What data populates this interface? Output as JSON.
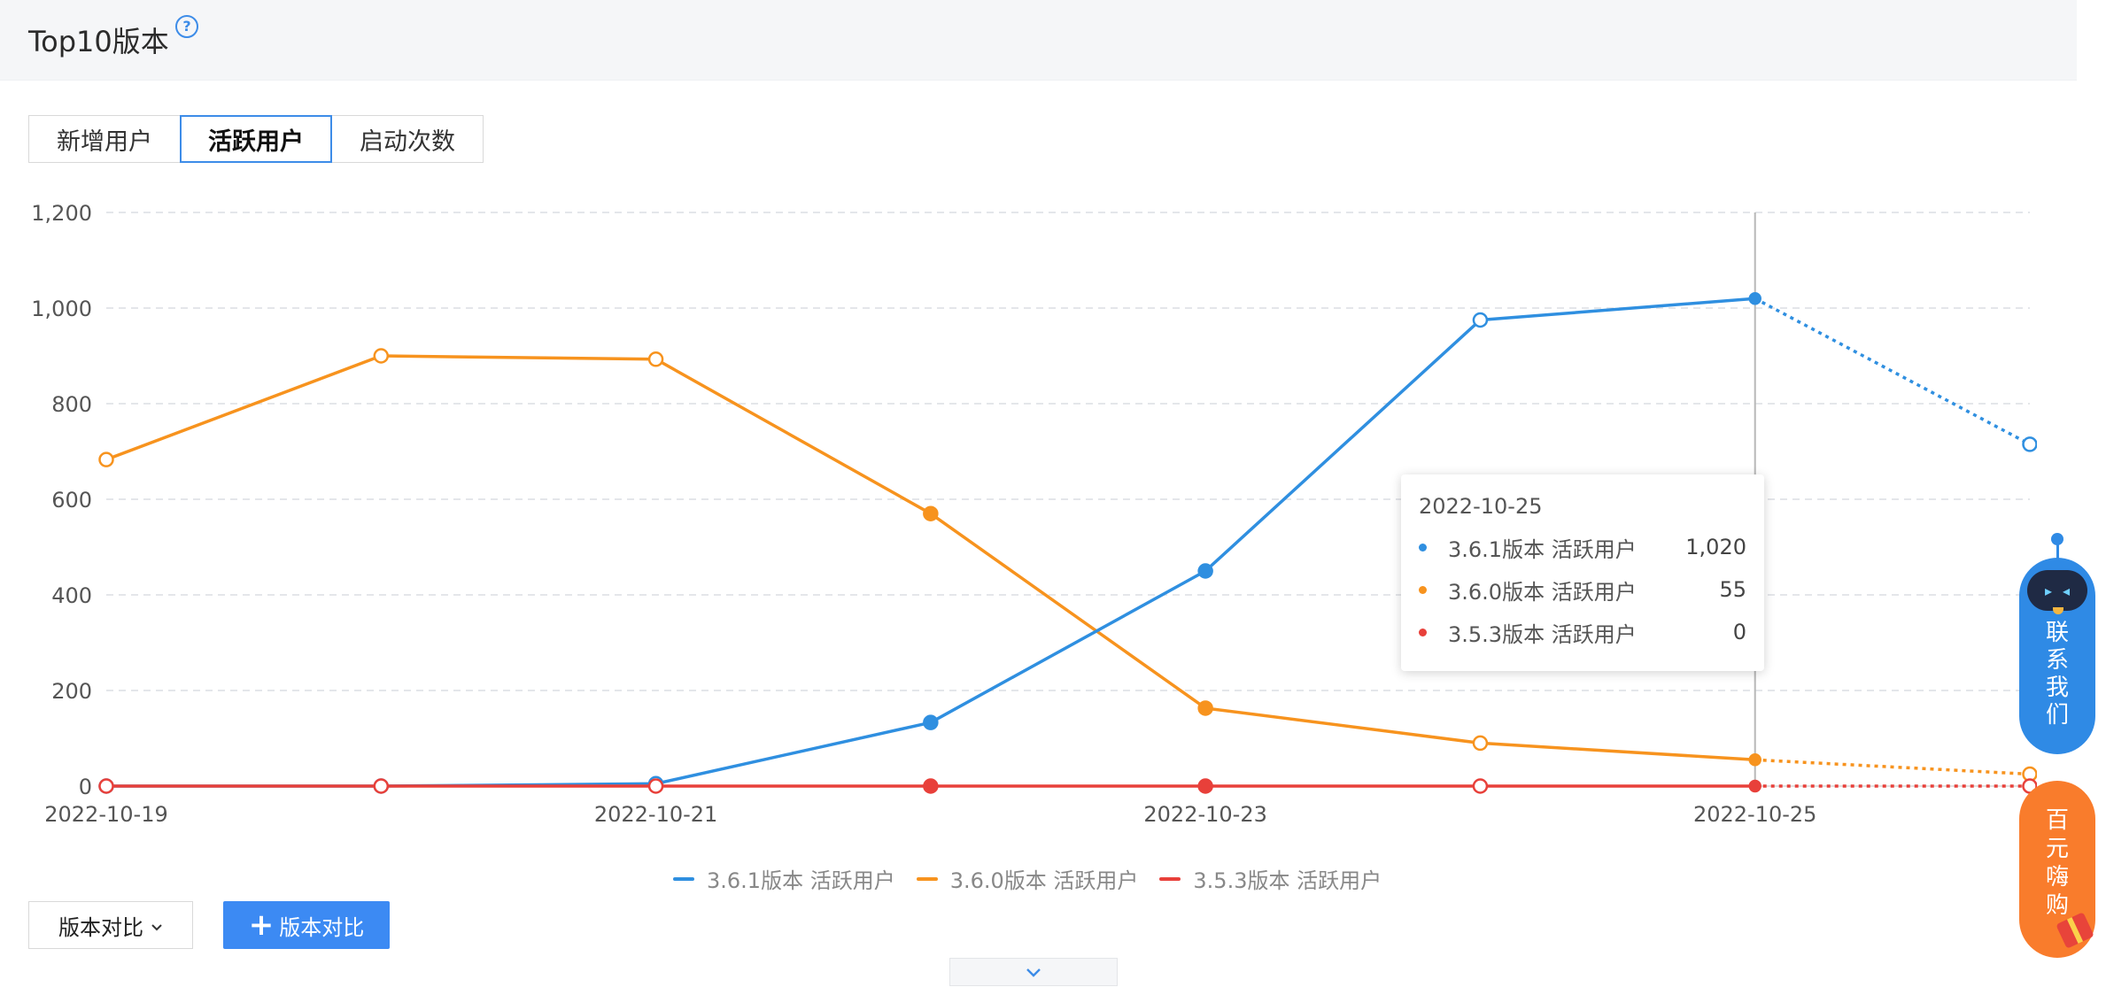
{
  "header": {
    "title": "Top10版本",
    "help_icon": "question-circle-icon"
  },
  "tabs": [
    {
      "label": "新增用户",
      "active": false
    },
    {
      "label": "活跃用户",
      "active": true
    },
    {
      "label": "启动次数",
      "active": false
    }
  ],
  "chart_data": {
    "type": "line",
    "x": [
      "2022-10-19",
      "2022-10-20",
      "2022-10-21",
      "2022-10-22",
      "2022-10-23",
      "2022-10-24",
      "2022-10-25",
      "2022-10-26"
    ],
    "x_tick_labels": [
      "2022-10-19",
      "2022-10-21",
      "2022-10-23",
      "2022-10-25"
    ],
    "y_tick_labels": [
      "0",
      "200",
      "400",
      "600",
      "800",
      "1,000",
      "1,200"
    ],
    "ylim": [
      0,
      1200
    ],
    "grid": true,
    "legend_position": "bottom",
    "last_point_dashed": true,
    "series": [
      {
        "name": "3.6.1版本 活跃用户",
        "color": "#2f8fe0",
        "values": [
          0,
          0,
          5,
          133,
          450,
          975,
          1020,
          715
        ]
      },
      {
        "name": "3.6.0版本 活跃用户",
        "color": "#f7931e",
        "values": [
          683,
          900,
          893,
          570,
          163,
          90,
          55,
          25
        ]
      },
      {
        "name": "3.5.3版本 活跃用户",
        "color": "#e8403a",
        "values": [
          0,
          0,
          0,
          0,
          0,
          0,
          0,
          0
        ]
      }
    ]
  },
  "tooltip": {
    "date": "2022-10-25",
    "rows": [
      {
        "name": "3.6.1版本 活跃用户",
        "value": "1,020",
        "color": "#2f8fe0"
      },
      {
        "name": "3.6.0版本 活跃用户",
        "value": "55",
        "color": "#f7931e"
      },
      {
        "name": "3.5.3版本 活跃用户",
        "value": "0",
        "color": "#e8403a"
      }
    ]
  },
  "controls": {
    "compare_select_label": "版本对比",
    "compare_button_label": "版本对比",
    "plus_icon": "plus-icon",
    "expand_icon": "chevron-down-icon"
  },
  "float_widgets": {
    "contact_chars": [
      "联",
      "系",
      "我",
      "们"
    ],
    "promo_chars": [
      "百",
      "元",
      "嗨",
      "购"
    ]
  }
}
